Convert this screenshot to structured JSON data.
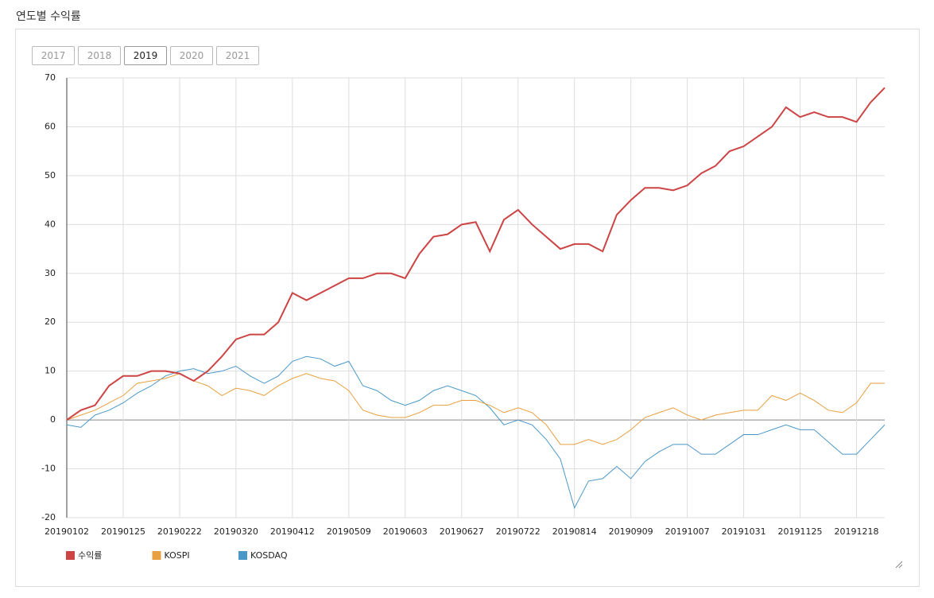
{
  "page_title": "연도별 수익률",
  "year_buttons": [
    {
      "label": "2017",
      "active": false
    },
    {
      "label": "2018",
      "active": false
    },
    {
      "label": "2019",
      "active": true
    },
    {
      "label": "2020",
      "active": false
    },
    {
      "label": "2021",
      "active": false
    }
  ],
  "chart_data": {
    "type": "line",
    "categories": [
      "20190102",
      null,
      null,
      null,
      "20190125",
      null,
      null,
      null,
      "20190222",
      null,
      null,
      null,
      "20190320",
      null,
      null,
      null,
      "20190412",
      null,
      null,
      null,
      "20190509",
      null,
      null,
      null,
      "20190603",
      null,
      null,
      null,
      "20190627",
      null,
      null,
      null,
      "20190722",
      null,
      null,
      null,
      "20190814",
      null,
      null,
      null,
      "20190909",
      null,
      null,
      null,
      "20191007",
      null,
      null,
      null,
      "20191031",
      null,
      null,
      null,
      "20191125",
      null,
      null,
      null,
      "20191218",
      null,
      null
    ],
    "series": [
      {
        "name": "수익률",
        "color": "#cc4444",
        "values": [
          0,
          2,
          3,
          7,
          9,
          9,
          10,
          10,
          9.5,
          8,
          10,
          13,
          16.5,
          17.5,
          17.5,
          20,
          26,
          24.5,
          26,
          27.5,
          29,
          29,
          30,
          30,
          29,
          34,
          37.5,
          38,
          40,
          40.5,
          34.5,
          41,
          43,
          40,
          37.5,
          35,
          36,
          36,
          34.5,
          42,
          45,
          47.5,
          47.5,
          47,
          48,
          50.5,
          52,
          55,
          56,
          58,
          60,
          64,
          62,
          63,
          62,
          62,
          61,
          65,
          68
        ]
      },
      {
        "name": "KOSPI",
        "color": "#e8a040",
        "values": [
          0,
          1,
          2,
          3.5,
          5,
          7.5,
          8,
          8.5,
          9.5,
          8,
          7,
          5,
          6.5,
          6,
          5,
          7,
          8.5,
          9.5,
          8.5,
          8,
          6,
          2,
          1,
          0.5,
          0.5,
          1.5,
          3,
          3,
          4,
          4,
          3,
          1.5,
          2.5,
          1.5,
          -1,
          -5,
          -5,
          -4,
          -5,
          -4,
          -2,
          0.5,
          1.5,
          2.5,
          1,
          0,
          1,
          1.5,
          2,
          2,
          5,
          4,
          5.5,
          4,
          2,
          1.5,
          3.5,
          7.5,
          7.5
        ]
      },
      {
        "name": "KOSDAQ",
        "color": "#4a98c8",
        "values": [
          -1,
          -1.5,
          1,
          2,
          3.5,
          5.5,
          7,
          9,
          10,
          10.5,
          9.5,
          10,
          11,
          9,
          7.5,
          9,
          12,
          13,
          12.5,
          11,
          12,
          7,
          6,
          4,
          3,
          4,
          6,
          7,
          6,
          5,
          2.5,
          -1,
          0,
          -1,
          -4,
          -8,
          -18,
          -12.5,
          -12,
          -9.5,
          -12,
          -8.5,
          -6.5,
          -5,
          -5,
          -7,
          -7,
          -5,
          -3,
          -3,
          -2,
          -1,
          -2,
          -2,
          -4.5,
          -7,
          -7,
          -4,
          -1
        ]
      }
    ],
    "ylim": [
      -20,
      70
    ],
    "yticks": [
      -20,
      -10,
      0,
      10,
      20,
      30,
      40,
      50,
      60,
      70
    ],
    "grid": true
  }
}
